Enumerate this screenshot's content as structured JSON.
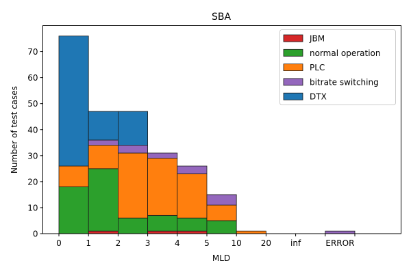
{
  "chart_data": {
    "type": "bar",
    "stacked": true,
    "title": "SBA",
    "xlabel": "MLD",
    "ylabel": "Number of test cases",
    "categories": [
      "0-1",
      "1-2",
      "2-3",
      "3-4",
      "4-5",
      "5-10",
      "10-20",
      "20-inf",
      "inf",
      "ERROR"
    ],
    "xtick_labels": [
      "0",
      "1",
      "2",
      "3",
      "4",
      "5",
      "10",
      "20",
      "inf",
      "",
      ""
    ],
    "error_label": "ERROR",
    "yticks": [
      0,
      10,
      20,
      30,
      40,
      50,
      60,
      70
    ],
    "ylim": [
      0,
      80
    ],
    "grid": false,
    "legend_position": "top-right",
    "series": [
      {
        "name": "JBM",
        "color": "#d62728",
        "values": [
          0,
          1,
          0,
          1,
          1,
          0,
          0,
          0,
          0,
          0
        ]
      },
      {
        "name": "normal operation",
        "color": "#2ca02c",
        "values": [
          18,
          24,
          6,
          6,
          5,
          5,
          0,
          0,
          0,
          0
        ]
      },
      {
        "name": "PLC",
        "color": "#ff7f0e",
        "values": [
          8,
          9,
          25,
          22,
          17,
          6,
          1,
          0,
          0,
          0
        ]
      },
      {
        "name": "bitrate switching",
        "color": "#9467bd",
        "values": [
          0,
          2,
          3,
          2,
          3,
          4,
          0,
          0,
          0,
          1
        ]
      },
      {
        "name": "DTX",
        "color": "#1f77b4",
        "values": [
          50,
          11,
          13,
          0,
          0,
          0,
          0,
          0,
          0,
          0
        ]
      }
    ]
  }
}
